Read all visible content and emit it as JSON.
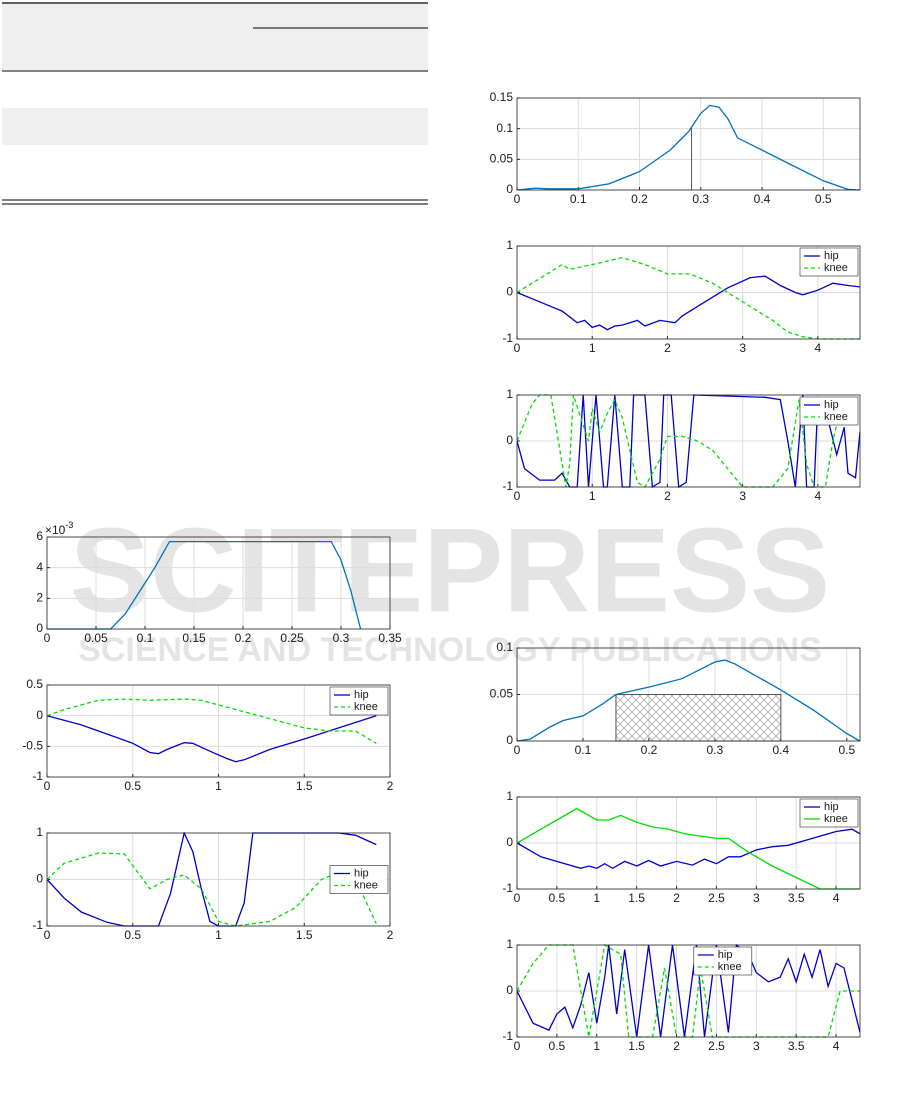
{
  "watermark": {
    "title": "SCITEPRESS",
    "subtitle": "SCIENCE AND TECHNOLOGY PUBLICATIONS"
  },
  "chart_data": [
    {
      "type": "line",
      "y_multiplier": {
        "base": "×10",
        "exponent": "-3"
      },
      "color": "#0072bd",
      "grid": true,
      "xlim": [
        0,
        0.35
      ],
      "xticks": [
        0,
        0.05,
        0.1,
        0.15,
        0.2,
        0.25,
        0.3,
        0.35
      ],
      "ylim": [
        0,
        6
      ],
      "yticks": [
        0,
        2,
        4,
        6
      ],
      "x": [
        0,
        0.065,
        0.08,
        0.1,
        0.11,
        0.125,
        0.29,
        0.3,
        0.31,
        0.32
      ],
      "values": [
        0,
        0,
        1,
        3,
        4,
        5.7,
        5.7,
        4.5,
        2.5,
        0
      ]
    },
    {
      "type": "line",
      "grid": true,
      "legend": "upper right",
      "xlim": [
        0,
        2
      ],
      "xticks": [
        0,
        0.5,
        1,
        1.5,
        2
      ],
      "ylim": [
        -1,
        0.5
      ],
      "yticks": [
        -1,
        -0.5,
        0,
        0.5
      ],
      "series": [
        {
          "name": "hip",
          "color": "#0000cc",
          "line_style": "solid",
          "x": [
            0,
            0.2,
            0.4,
            0.5,
            0.6,
            0.65,
            0.7,
            0.8,
            0.85,
            0.95,
            1.05,
            1.1,
            1.15,
            1.3,
            1.5,
            1.7,
            1.9,
            1.92
          ],
          "values": [
            0,
            -0.15,
            -0.35,
            -0.45,
            -0.6,
            -0.62,
            -0.55,
            -0.44,
            -0.45,
            -0.58,
            -0.7,
            -0.75,
            -0.72,
            -0.55,
            -0.38,
            -0.2,
            -0.02,
            0
          ]
        },
        {
          "name": "knee",
          "color": "#00dd00",
          "line_style": "dashed",
          "x": [
            0,
            0.1,
            0.3,
            0.45,
            0.6,
            0.8,
            0.9,
            1.1,
            1.3,
            1.5,
            1.65,
            1.8,
            1.92
          ],
          "values": [
            0,
            0.1,
            0.25,
            0.27,
            0.25,
            0.27,
            0.25,
            0.1,
            -0.05,
            -0.2,
            -0.25,
            -0.25,
            -0.45
          ]
        }
      ]
    },
    {
      "type": "line",
      "grid": true,
      "legend": "right",
      "xlim": [
        0,
        2
      ],
      "xticks": [
        0,
        0.5,
        1,
        1.5,
        2
      ],
      "ylim": [
        -1,
        1
      ],
      "yticks": [
        -1,
        0,
        1
      ],
      "series": [
        {
          "name": "hip",
          "color": "#0000cc",
          "line_style": "solid",
          "x": [
            0,
            0.1,
            0.2,
            0.35,
            0.45,
            0.65,
            0.72,
            0.8,
            0.85,
            0.9,
            0.95,
            1.0,
            1.1,
            1.15,
            1.2,
            1.7,
            1.8,
            1.92
          ],
          "values": [
            0,
            -0.4,
            -0.7,
            -0.92,
            -1,
            -1,
            -0.3,
            1,
            0.6,
            -0.2,
            -0.9,
            -1,
            -1,
            -0.5,
            1,
            1,
            0.95,
            0.75
          ]
        },
        {
          "name": "knee",
          "color": "#00dd00",
          "line_style": "dashed",
          "x": [
            0,
            0.1,
            0.3,
            0.45,
            0.6,
            0.7,
            0.8,
            0.9,
            1.0,
            1.1,
            1.3,
            1.45,
            1.6,
            1.7,
            1.8,
            1.92
          ],
          "values": [
            0,
            0.35,
            0.57,
            0.55,
            -0.2,
            0,
            0.1,
            -0.2,
            -0.9,
            -1,
            -0.9,
            -0.6,
            0,
            0.15,
            0,
            -0.95
          ]
        }
      ]
    },
    {
      "type": "line",
      "color": "#0072bd",
      "grid": true,
      "marker_x": 0.285,
      "marker_y": 0.102,
      "xlim": [
        0,
        0.56
      ],
      "xticks": [
        0,
        0.1,
        0.2,
        0.3,
        0.4,
        0.5
      ],
      "ylim": [
        0,
        0.15
      ],
      "yticks": [
        0,
        0.05,
        0.1,
        0.15
      ],
      "x": [
        0,
        0.03,
        0.05,
        0.1,
        0.15,
        0.2,
        0.25,
        0.28,
        0.3,
        0.315,
        0.33,
        0.345,
        0.36,
        0.4,
        0.45,
        0.5,
        0.54,
        0.56
      ],
      "values": [
        0,
        0.003,
        0.002,
        0.002,
        0.01,
        0.03,
        0.065,
        0.095,
        0.125,
        0.138,
        0.135,
        0.115,
        0.085,
        0.065,
        0.04,
        0.015,
        0.001,
        0
      ]
    },
    {
      "type": "line",
      "grid": true,
      "legend": "upper right",
      "xlim": [
        0,
        4.56
      ],
      "xticks": [
        0,
        1,
        2,
        3,
        4
      ],
      "ylim": [
        -1,
        1
      ],
      "yticks": [
        -1,
        0,
        1
      ],
      "series": [
        {
          "name": "hip",
          "color": "#0000cc",
          "line_style": "solid",
          "x": [
            0,
            0.3,
            0.6,
            0.8,
            0.9,
            1.0,
            1.1,
            1.2,
            1.3,
            1.4,
            1.6,
            1.7,
            1.9,
            2.1,
            2.2,
            2.5,
            2.8,
            3.1,
            3.3,
            3.5,
            3.7,
            3.8,
            4.0,
            4.2,
            4.4,
            4.56
          ],
          "values": [
            0,
            -0.2,
            -0.4,
            -0.65,
            -0.6,
            -0.75,
            -0.7,
            -0.8,
            -0.72,
            -0.7,
            -0.6,
            -0.72,
            -0.6,
            -0.65,
            -0.5,
            -0.2,
            0.1,
            0.32,
            0.35,
            0.15,
            0,
            -0.05,
            0.05,
            0.2,
            0.15,
            0.12
          ]
        },
        {
          "name": "knee",
          "color": "#00dd00",
          "line_style": "dashed",
          "x": [
            0,
            0.3,
            0.6,
            0.7,
            1.0,
            1.4,
            1.7,
            2.0,
            2.3,
            2.6,
            3.0,
            3.4,
            3.6,
            3.8,
            4.0,
            4.56
          ],
          "values": [
            0,
            0.3,
            0.6,
            0.5,
            0.6,
            0.75,
            0.6,
            0.4,
            0.4,
            0.2,
            -0.2,
            -0.6,
            -0.85,
            -0.95,
            -1,
            -1
          ]
        }
      ]
    },
    {
      "type": "line",
      "grid": true,
      "legend": "upper right",
      "xlim": [
        0,
        4.56
      ],
      "xticks": [
        0,
        1,
        2,
        3,
        4
      ],
      "ylim": [
        -1,
        1
      ],
      "yticks": [
        -1,
        0,
        1
      ],
      "series": [
        {
          "name": "hip",
          "color": "#0000cc",
          "line_style": "solid",
          "x": [
            0,
            0.1,
            0.3,
            0.5,
            0.6,
            0.7,
            0.8,
            0.88,
            0.95,
            1.05,
            1.15,
            1.2,
            1.3,
            1.4,
            1.5,
            1.55,
            1.7,
            1.8,
            1.9,
            1.95,
            2.05,
            2.15,
            2.25,
            2.35,
            3.3,
            3.5,
            3.6,
            3.7,
            3.75,
            3.8,
            3.85,
            3.95,
            4.0,
            4.1,
            4.25,
            4.35,
            4.4,
            4.5,
            4.56
          ],
          "values": [
            0,
            -0.6,
            -0.85,
            -0.85,
            -0.7,
            -1,
            -1,
            1,
            -1,
            1,
            -1,
            -1,
            1,
            -1,
            -1,
            1,
            1,
            -1,
            -0.9,
            1,
            1,
            -1,
            -0.9,
            1,
            0.95,
            0.9,
            0,
            -1,
            0,
            1,
            -1,
            -1,
            0.9,
            0.7,
            -0.3,
            0.3,
            -0.7,
            -0.8,
            0.2
          ]
        },
        {
          "name": "knee",
          "color": "#00dd00",
          "line_style": "dashed",
          "x": [
            0,
            0.2,
            0.3,
            0.45,
            0.55,
            0.65,
            0.7,
            0.75,
            0.85,
            0.95,
            1.0,
            1.1,
            1.2,
            1.3,
            1.4,
            1.5,
            1.6,
            1.7,
            1.9,
            2.0,
            2.2,
            2.4,
            2.6,
            2.8,
            3.0,
            3.4,
            3.6,
            3.75,
            3.85,
            3.95,
            4.1,
            4.2,
            4.3,
            4.4,
            4.56
          ],
          "values": [
            0,
            0.8,
            1,
            1,
            0,
            -1,
            -0.5,
            1,
            0.5,
            0,
            0.7,
            0.2,
            0.6,
            0.9,
            0.5,
            -0.2,
            -0.9,
            -1,
            -0.4,
            0.1,
            0.1,
            0,
            -0.2,
            -0.6,
            -1,
            -1,
            -0.6,
            0.9,
            -0.5,
            -1,
            -1,
            0,
            0.7,
            0.7,
            0.7
          ]
        }
      ]
    },
    {
      "type": "line",
      "color": "#0072bd",
      "grid": true,
      "region": {
        "x": [
          0.15,
          0.4
        ],
        "y": [
          0,
          0.05
        ]
      },
      "xlim": [
        0,
        0.52
      ],
      "xticks": [
        0,
        0.1,
        0.2,
        0.3,
        0.4,
        0.5
      ],
      "ylim": [
        0,
        0.1
      ],
      "yticks": [
        0,
        0.05,
        0.1
      ],
      "x": [
        0,
        0.02,
        0.05,
        0.07,
        0.1,
        0.13,
        0.15,
        0.2,
        0.25,
        0.3,
        0.315,
        0.33,
        0.4,
        0.45,
        0.5,
        0.52
      ],
      "values": [
        0,
        0.002,
        0.015,
        0.022,
        0.027,
        0.04,
        0.05,
        0.058,
        0.067,
        0.085,
        0.087,
        0.083,
        0.055,
        0.033,
        0.008,
        0
      ]
    },
    {
      "type": "line",
      "grid": true,
      "legend": "upper right",
      "xlim": [
        0,
        4.3
      ],
      "xticks": [
        0,
        0.5,
        1,
        1.5,
        2,
        2.5,
        3,
        3.5,
        4
      ],
      "ylim": [
        -1,
        1
      ],
      "yticks": [
        -1,
        0,
        1
      ],
      "series": [
        {
          "name": "hip",
          "color": "#0000cc",
          "line_style": "solid",
          "x": [
            0,
            0.3,
            0.6,
            0.8,
            0.9,
            1.0,
            1.1,
            1.2,
            1.35,
            1.5,
            1.65,
            1.8,
            2.0,
            2.2,
            2.35,
            2.5,
            2.65,
            2.8,
            3.0,
            3.2,
            3.4,
            3.6,
            3.8,
            4.0,
            4.2,
            4.3
          ],
          "values": [
            0,
            -0.3,
            -0.45,
            -0.55,
            -0.5,
            -0.55,
            -0.45,
            -0.55,
            -0.4,
            -0.5,
            -0.38,
            -0.5,
            -0.4,
            -0.48,
            -0.35,
            -0.45,
            -0.3,
            -0.3,
            -0.15,
            -0.08,
            -0.05,
            0.05,
            0.15,
            0.25,
            0.3,
            0.2
          ]
        },
        {
          "name": "knee",
          "color": "#00dd00",
          "line_style": "solid",
          "x": [
            0,
            0.3,
            0.75,
            1.0,
            1.15,
            1.3,
            1.5,
            1.7,
            1.9,
            2.1,
            2.3,
            2.5,
            2.65,
            2.9,
            3.2,
            3.5,
            3.8,
            4.3
          ],
          "values": [
            0,
            0.3,
            0.75,
            0.5,
            0.5,
            0.6,
            0.45,
            0.35,
            0.3,
            0.2,
            0.15,
            0.1,
            0.1,
            -0.2,
            -0.5,
            -0.75,
            -1,
            -1
          ]
        }
      ]
    },
    {
      "type": "line",
      "grid": true,
      "legend": "upper center",
      "xlim": [
        0,
        4.3
      ],
      "xticks": [
        0,
        0.5,
        1,
        1.5,
        2,
        2.5,
        3,
        3.5,
        4
      ],
      "ylim": [
        -1,
        1
      ],
      "yticks": [
        -1,
        0,
        1
      ],
      "series": [
        {
          "name": "hip",
          "color": "#0000cc",
          "line_style": "solid",
          "x": [
            0,
            0.2,
            0.4,
            0.5,
            0.6,
            0.7,
            0.8,
            0.9,
            1.0,
            1.1,
            1.15,
            1.25,
            1.35,
            1.5,
            1.65,
            1.8,
            1.95,
            2.1,
            2.25,
            2.35,
            2.5,
            2.65,
            2.75,
            2.9,
            3.0,
            3.15,
            3.3,
            3.4,
            3.5,
            3.6,
            3.7,
            3.8,
            3.9,
            4.0,
            4.1,
            4.2,
            4.3
          ],
          "values": [
            0,
            -0.7,
            -0.85,
            -0.5,
            -0.35,
            -0.8,
            -0.3,
            0.4,
            -0.7,
            0.3,
            1,
            -0.5,
            0.9,
            -1,
            1,
            -1,
            1,
            -1,
            1,
            -1,
            1,
            -0.9,
            1,
            0.8,
            0.4,
            0.2,
            0.3,
            0.7,
            0.2,
            0.8,
            0.3,
            0.9,
            0.1,
            0.6,
            0.5,
            -0.2,
            -0.9
          ]
        },
        {
          "name": "knee",
          "color": "#00dd00",
          "line_style": "dashed",
          "x": [
            0,
            0.2,
            0.4,
            0.7,
            0.8,
            0.9,
            1.0,
            1.1,
            1.3,
            1.4,
            1.7,
            1.85,
            2.0,
            2.2,
            2.3,
            2.45,
            2.7,
            3.1,
            3.6,
            3.9,
            4.05,
            4.3
          ],
          "values": [
            0,
            0.6,
            1,
            1,
            0,
            -1,
            0,
            1,
            0.8,
            -1,
            -1,
            0.5,
            -1,
            -1,
            0.5,
            -1,
            -1,
            -1,
            -1,
            -1,
            0,
            0
          ]
        }
      ]
    }
  ]
}
